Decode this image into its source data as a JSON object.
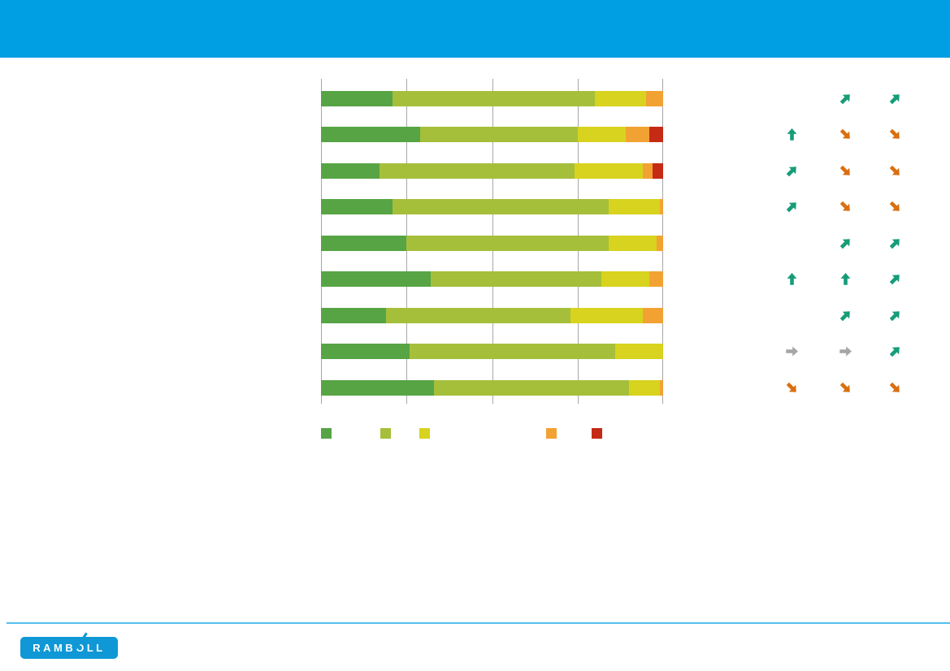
{
  "page": {
    "kind": "presentation-slide",
    "background": "#FFFFFF"
  },
  "header": {
    "band_color": "#009EE2",
    "text": ""
  },
  "chart_data": {
    "type": "bar",
    "orientation": "horizontal-stacked",
    "title": "",
    "xlabel": "",
    "ylabel": "",
    "xlim": [
      0,
      100
    ],
    "gridlines_pct": [
      0,
      25,
      50,
      75,
      100
    ],
    "gridline_color": "#A7A7A7",
    "legend_position": "bottom",
    "categories": [
      "row-1",
      "row-2",
      "row-3",
      "row-4",
      "row-5",
      "row-6",
      "row-7",
      "row-8",
      "row-9"
    ],
    "series": [
      {
        "name": "green",
        "color": "#57A445",
        "values": [
          21,
          29,
          17,
          21,
          25,
          32,
          19,
          26,
          33
        ]
      },
      {
        "name": "light-green",
        "color": "#A5BF3B",
        "values": [
          59,
          46,
          57,
          63,
          59,
          50,
          54,
          60,
          57
        ]
      },
      {
        "name": "yellow",
        "color": "#D8D31E",
        "values": [
          15,
          14,
          20,
          15,
          14,
          14,
          21,
          14,
          9
        ]
      },
      {
        "name": "orange",
        "color": "#F2A233",
        "values": [
          5,
          7,
          3,
          1,
          2,
          4,
          6,
          0,
          1
        ]
      },
      {
        "name": "red",
        "color": "#C52A14",
        "values": [
          0,
          4,
          3,
          0,
          0,
          0,
          0,
          0,
          0
        ]
      }
    ]
  },
  "legend": {
    "swatches": [
      {
        "name": "green",
        "color": "#57A445"
      },
      {
        "name": "light-green",
        "color": "#A5BF3B"
      },
      {
        "name": "yellow",
        "color": "#D8D31E"
      },
      {
        "name": "orange",
        "color": "#F2A233"
      },
      {
        "name": "red",
        "color": "#C52A14"
      }
    ]
  },
  "trend_arrows": {
    "columns": 3,
    "rows": [
      [
        "",
        "up-right",
        "up-right"
      ],
      [
        "up",
        "down-right",
        "down-right"
      ],
      [
        "up-right",
        "down-right",
        "down-right"
      ],
      [
        "up-right",
        "down-right",
        "down-right"
      ],
      [
        "",
        "up-right",
        "up-right"
      ],
      [
        "up",
        "up",
        "up-right"
      ],
      [
        "",
        "up-right",
        "up-right"
      ],
      [
        "right",
        "right",
        "up-right"
      ],
      [
        "down-right",
        "down-right",
        "down-right"
      ]
    ],
    "colors": {
      "up": "#169C78",
      "up-right": "#169C78",
      "right": "#A6A6A6",
      "down-right": "#D96F10"
    }
  },
  "footer": {
    "divider_color": "#54C0EE",
    "logo_text": "RAMBOLL",
    "logo_bg": "#0F98D5"
  }
}
